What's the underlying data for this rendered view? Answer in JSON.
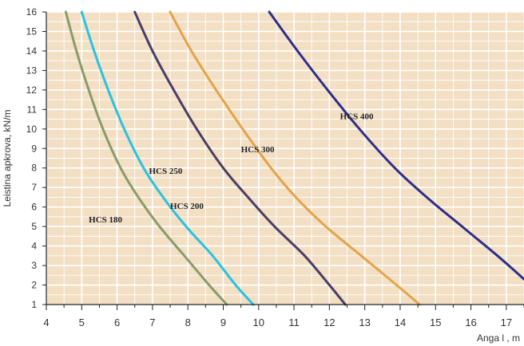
{
  "chart_data": {
    "type": "line",
    "xlabel": "Anga  l  , m",
    "ylabel": "Leistina apkrova,  kN/m",
    "xlim": [
      4,
      17.5
    ],
    "ylim": [
      1,
      16
    ],
    "x_ticks": [
      4,
      5,
      6,
      7,
      8,
      9,
      10,
      11,
      12,
      13,
      14,
      15,
      16,
      17
    ],
    "y_ticks": [
      1,
      2,
      3,
      4,
      5,
      6,
      7,
      8,
      9,
      10,
      11,
      12,
      13,
      14,
      15,
      16
    ],
    "grid": true,
    "background_color": "#f2dfc4",
    "grid_color": "#ffffff",
    "series": [
      {
        "name": "HCS 180",
        "color": "#8a9a6a",
        "label_at": [
          5.2,
          5.2
        ],
        "points": [
          [
            4.55,
            16
          ],
          [
            4.85,
            14
          ],
          [
            5.2,
            12
          ],
          [
            5.6,
            10
          ],
          [
            6.1,
            8
          ],
          [
            6.6,
            6.5
          ],
          [
            7.2,
            5
          ],
          [
            7.9,
            3.5
          ],
          [
            8.6,
            2
          ],
          [
            9.1,
            1
          ]
        ]
      },
      {
        "name": "HCS 200",
        "color": "#29c2e0",
        "label_at": [
          7.5,
          5.9
        ],
        "points": [
          [
            5.0,
            16
          ],
          [
            5.35,
            14
          ],
          [
            5.75,
            12
          ],
          [
            6.2,
            10
          ],
          [
            6.75,
            8
          ],
          [
            7.3,
            6.5
          ],
          [
            7.95,
            5
          ],
          [
            8.7,
            3.5
          ],
          [
            9.35,
            2
          ],
          [
            9.85,
            1
          ]
        ]
      },
      {
        "name": "HCS 250",
        "color": "#4a3e66",
        "label_at": [
          6.9,
          7.7
        ],
        "points": [
          [
            6.5,
            16
          ],
          [
            7.0,
            14
          ],
          [
            7.6,
            12
          ],
          [
            8.25,
            10
          ],
          [
            9.0,
            8
          ],
          [
            9.7,
            6.5
          ],
          [
            10.45,
            5
          ],
          [
            11.3,
            3.5
          ],
          [
            12.0,
            2
          ],
          [
            12.45,
            1
          ]
        ]
      },
      {
        "name": "HCS 300",
        "color": "#e3a449",
        "label_at": [
          9.5,
          8.8
        ],
        "points": [
          [
            7.5,
            16
          ],
          [
            8.1,
            14
          ],
          [
            8.8,
            12
          ],
          [
            9.55,
            10
          ],
          [
            10.35,
            8
          ],
          [
            11.05,
            6.5
          ],
          [
            11.9,
            5
          ],
          [
            12.9,
            3.5
          ],
          [
            13.9,
            2
          ],
          [
            14.55,
            1
          ]
        ]
      },
      {
        "name": "HCS 400",
        "color": "#2e2e8a",
        "label_at": [
          12.3,
          10.5
        ],
        "points": [
          [
            10.3,
            16
          ],
          [
            11.1,
            14
          ],
          [
            11.95,
            12
          ],
          [
            12.85,
            10
          ],
          [
            13.85,
            8
          ],
          [
            14.75,
            6.5
          ],
          [
            15.75,
            5
          ],
          [
            16.75,
            3.5
          ],
          [
            17.5,
            2.3
          ]
        ]
      }
    ]
  }
}
